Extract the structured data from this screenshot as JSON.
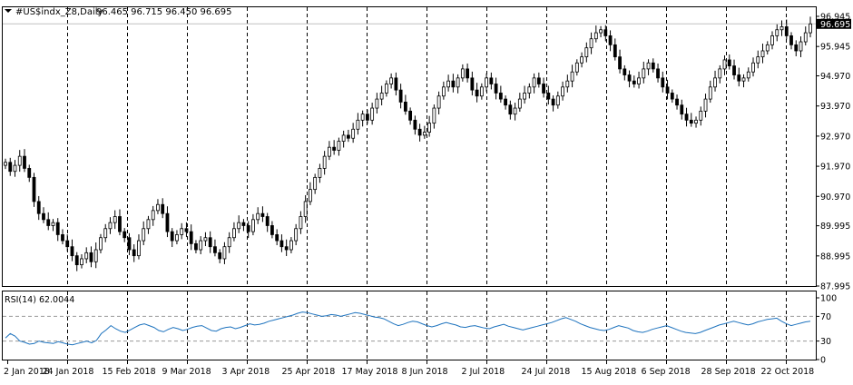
{
  "chart_data": [
    {
      "type": "candlestick",
      "symbol_label": "#US$indx_Z8,Daily",
      "ohlc_label": "96.465 96.715 96.450 96.695",
      "price_tag": "96.695",
      "colors": {
        "ink": "#000000",
        "grid": "#000000",
        "price_line": "#c0c0c0",
        "bull_fill": "#ffffff",
        "bear_fill": "#000000"
      },
      "grid": "vertical dashed",
      "ylim": [
        87.995,
        96.945
      ],
      "y_ticks": [
        "96.945",
        "95.945",
        "94.970",
        "93.970",
        "92.970",
        "91.970",
        "90.970",
        "89.995",
        "88.995",
        "87.995"
      ],
      "x_tick_labels": [
        "2 Jan 2018",
        "24 Jan 2018",
        "15 Feb 2018",
        "9 Mar 2018",
        "3 Apr 2018",
        "25 Apr 2018",
        "17 May 2018",
        "8 Jun 2018",
        "2 Jul 2018",
        "24 Jul 2018",
        "15 Aug 2018",
        "6 Sep 2018",
        "28 Sep 2018",
        "22 Oct 2018"
      ],
      "closes": [
        92.1,
        91.8,
        92.0,
        92.3,
        91.9,
        91.6,
        90.8,
        90.4,
        90.2,
        90.0,
        90.1,
        89.7,
        89.5,
        89.3,
        89.0,
        88.7,
        88.9,
        89.1,
        88.8,
        89.2,
        89.6,
        89.9,
        90.1,
        90.3,
        89.8,
        89.6,
        89.2,
        89.0,
        89.5,
        89.9,
        90.2,
        90.5,
        90.7,
        90.4,
        89.8,
        89.5,
        89.7,
        89.9,
        89.8,
        89.4,
        89.2,
        89.5,
        89.6,
        89.3,
        89.1,
        88.9,
        89.3,
        89.6,
        89.9,
        90.1,
        90.0,
        89.8,
        90.2,
        90.4,
        90.3,
        90.0,
        89.7,
        89.5,
        89.3,
        89.2,
        89.5,
        89.9,
        90.3,
        90.8,
        91.2,
        91.6,
        91.9,
        92.3,
        92.6,
        92.5,
        92.8,
        93.0,
        92.9,
        93.2,
        93.5,
        93.7,
        93.5,
        93.9,
        94.2,
        94.4,
        94.7,
        94.9,
        94.5,
        94.1,
        93.8,
        93.5,
        93.2,
        93.0,
        93.1,
        93.4,
        93.9,
        94.3,
        94.6,
        94.8,
        94.6,
        94.9,
        95.2,
        94.9,
        94.5,
        94.3,
        94.6,
        94.9,
        94.7,
        94.4,
        94.2,
        94.0,
        93.7,
        93.9,
        94.2,
        94.4,
        94.6,
        94.9,
        94.7,
        94.4,
        94.2,
        94.0,
        94.3,
        94.6,
        94.8,
        95.1,
        95.4,
        95.6,
        95.9,
        96.2,
        96.4,
        96.5,
        96.3,
        96.0,
        95.6,
        95.2,
        95.0,
        94.8,
        94.7,
        94.9,
        95.2,
        95.4,
        95.2,
        94.9,
        94.6,
        94.4,
        94.2,
        94.0,
        93.7,
        93.5,
        93.4,
        93.5,
        93.8,
        94.2,
        94.6,
        94.9,
        95.2,
        95.5,
        95.3,
        95.0,
        94.8,
        94.9,
        95.1,
        95.4,
        95.6,
        95.8,
        96.0,
        96.3,
        96.5,
        96.6,
        96.3,
        96.0,
        95.8,
        96.1,
        96.4,
        96.695
      ],
      "rsi": {
        "label": "RSI(14) 62.0044",
        "ylim": [
          0,
          100
        ],
        "ticks": [
          "100",
          "70",
          "30",
          "0"
        ],
        "levels": [
          70,
          30
        ],
        "values": [
          35,
          42,
          38,
          30,
          28,
          25,
          26,
          30,
          28,
          27,
          26,
          29,
          27,
          25,
          24,
          26,
          28,
          30,
          27,
          31,
          42,
          48,
          55,
          50,
          46,
          44,
          48,
          52,
          56,
          58,
          55,
          52,
          47,
          45,
          49,
          52,
          50,
          47,
          49,
          52,
          54,
          55,
          51,
          47,
          46,
          50,
          52,
          53,
          50,
          52,
          55,
          58,
          56,
          57,
          59,
          62,
          64,
          66,
          68,
          70,
          72,
          75,
          77,
          76,
          74,
          72,
          70,
          71,
          73,
          72,
          70,
          72,
          74,
          76,
          75,
          73,
          71,
          69,
          68,
          66,
          62,
          58,
          55,
          57,
          60,
          62,
          61,
          58,
          55,
          53,
          55,
          58,
          60,
          58,
          56,
          53,
          52,
          54,
          55,
          53,
          51,
          50,
          53,
          55,
          57,
          54,
          52,
          50,
          48,
          50,
          52,
          54,
          56,
          58,
          60,
          63,
          66,
          68,
          65,
          62,
          58,
          55,
          52,
          50,
          48,
          47,
          49,
          52,
          55,
          53,
          51,
          47,
          45,
          44,
          46,
          49,
          51,
          53,
          55,
          52,
          49,
          46,
          44,
          43,
          42,
          44,
          47,
          50,
          53,
          56,
          58,
          60,
          62,
          60,
          58,
          56,
          58,
          61,
          63,
          65,
          66,
          67,
          62,
          58,
          55,
          57,
          59,
          61,
          62
        ]
      }
    }
  ]
}
